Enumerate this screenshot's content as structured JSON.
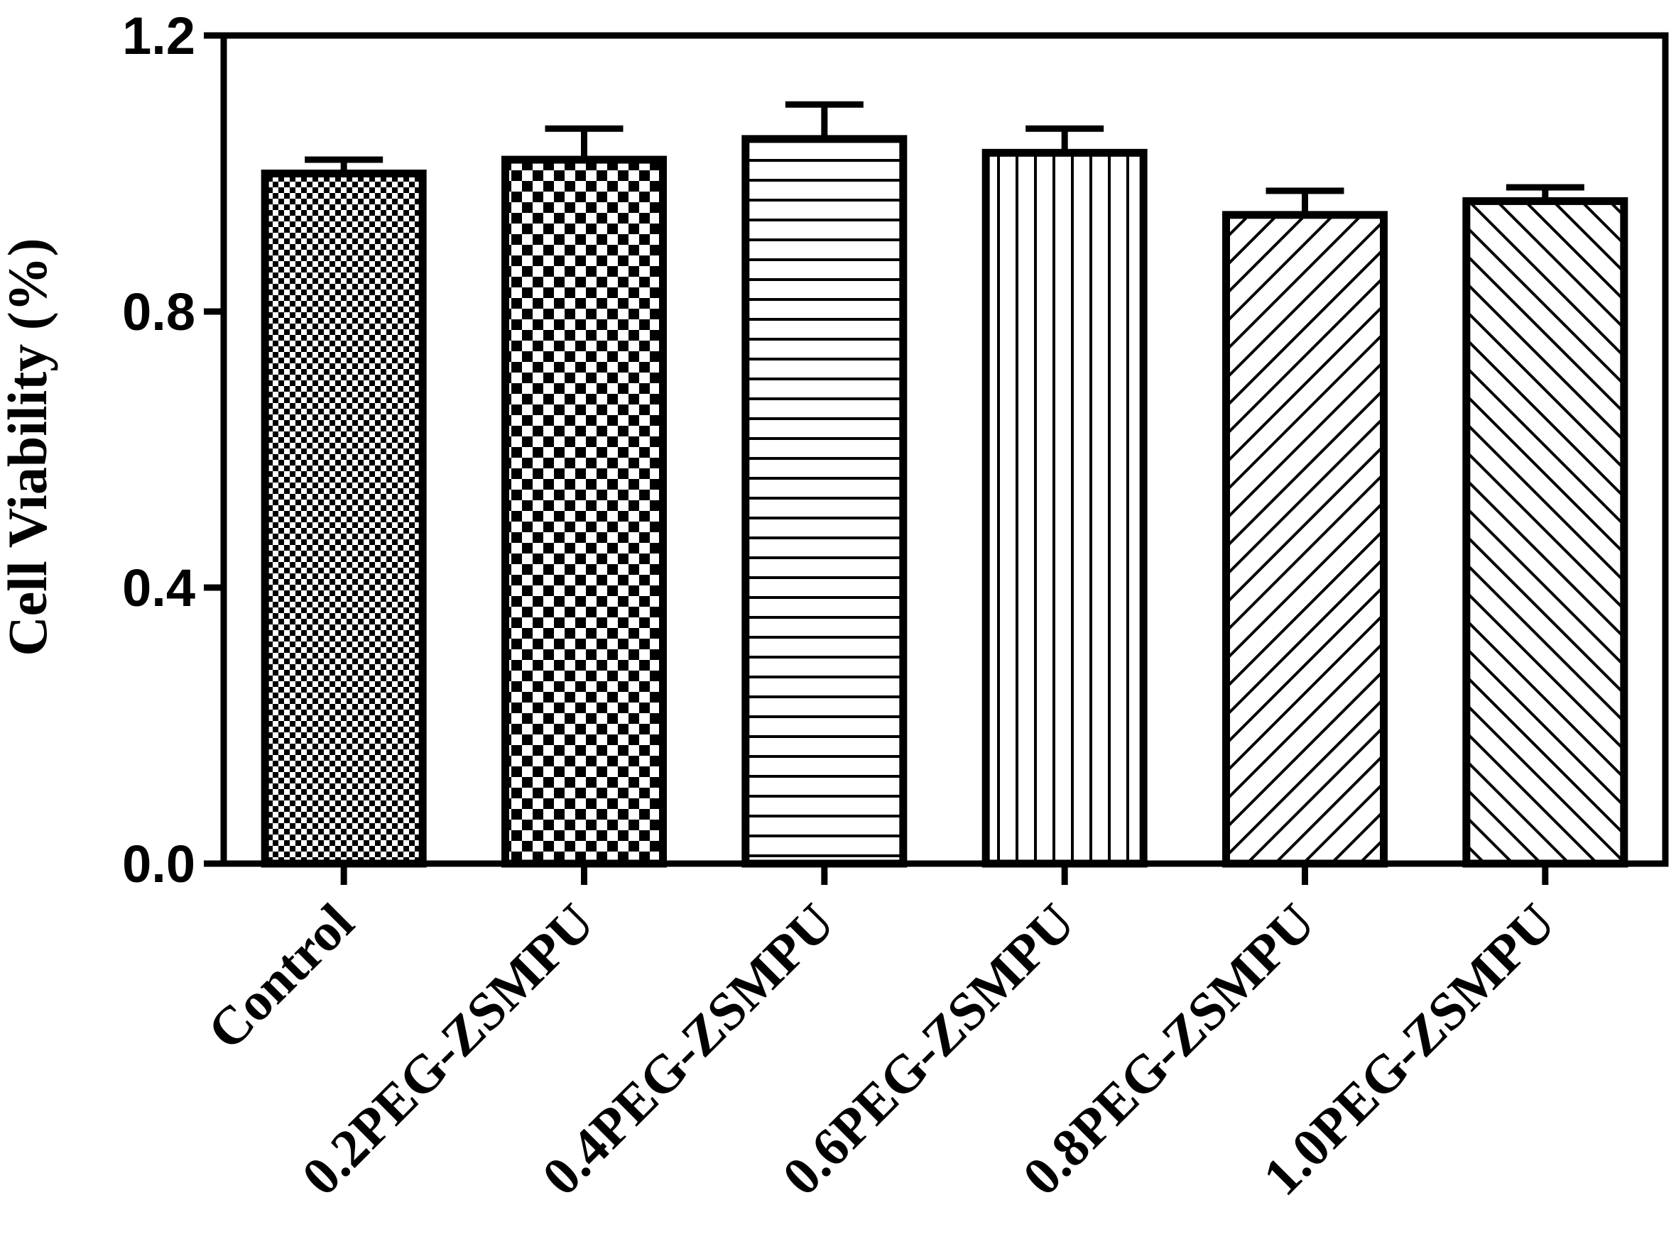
{
  "chart_data": {
    "type": "bar",
    "title": "",
    "xlabel": "",
    "ylabel": "Cell Viability (%)",
    "ylim": [
      0,
      1.2
    ],
    "yticks": [
      0.0,
      0.4,
      0.8,
      1.2
    ],
    "ytick_labels": [
      "0.0",
      "0.4",
      "0.8",
      "1.2"
    ],
    "categories": [
      "Control",
      "0.2PEG-ZSMPU",
      "0.4PEG-ZSMPU",
      "0.6PEG-ZSMPU",
      "0.8PEG-ZSMPU",
      "1.0PEG-ZSMPU"
    ],
    "values": [
      1.0,
      1.02,
      1.05,
      1.03,
      0.94,
      0.96
    ],
    "errors": [
      0.02,
      0.045,
      0.05,
      0.035,
      0.035,
      0.02
    ],
    "patterns": [
      "checker-fine",
      "checker-coarse",
      "horizontal-lines",
      "vertical-lines",
      "diagonal-up",
      "diagonal-down"
    ],
    "grid": false,
    "legend": "none",
    "colors": {
      "ink": "#000000",
      "background": "#ffffff"
    }
  }
}
